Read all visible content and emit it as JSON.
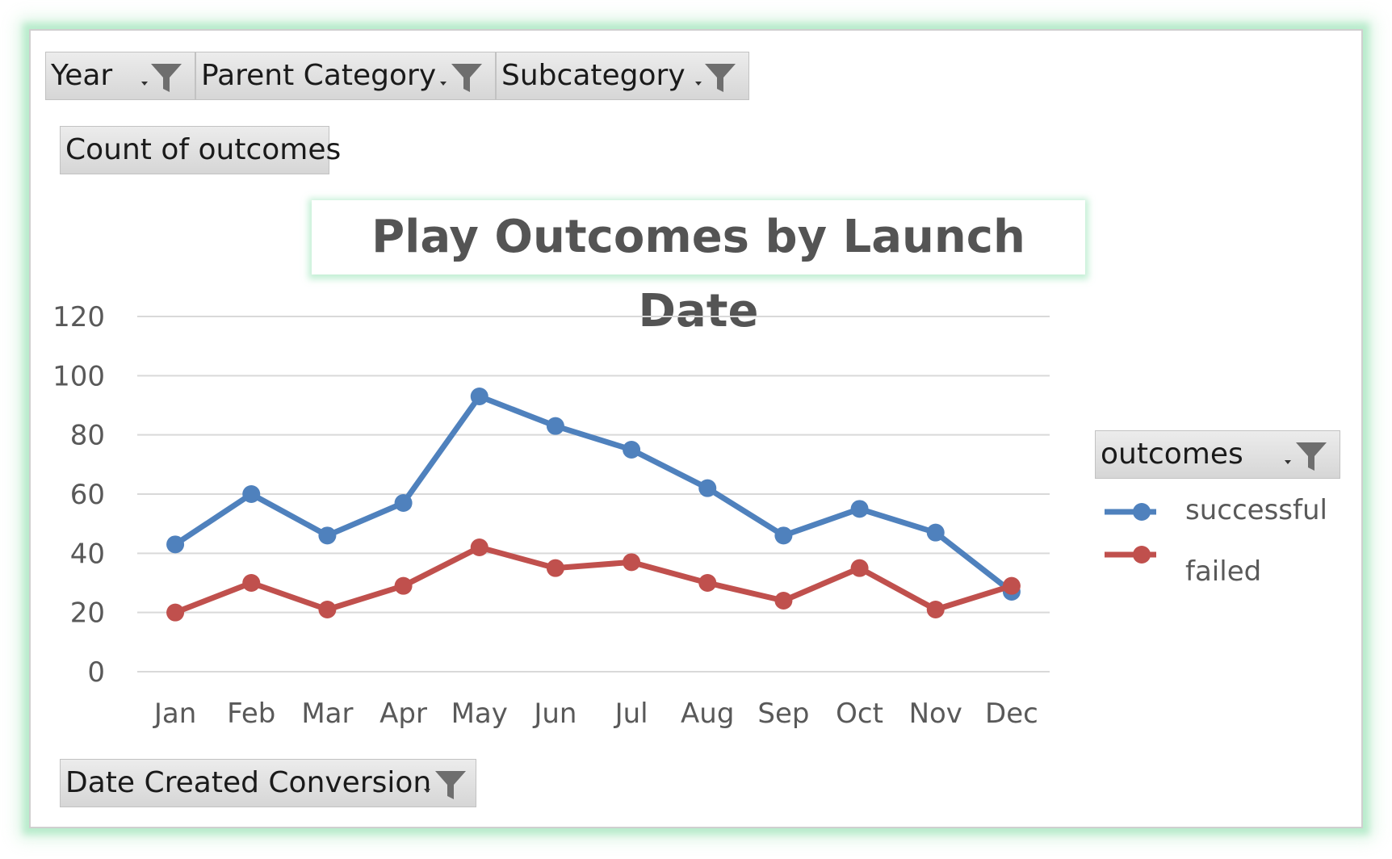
{
  "filters": {
    "year": "Year",
    "parent_category": "Parent Category",
    "subcategory": "Subcategory"
  },
  "values_field": "Count of outcomes",
  "axis_field": "Date Created Conversion",
  "legend_field": "outcomes",
  "icons": [
    "funnel-filter-icon",
    "dropdown-arrow-icon"
  ],
  "colors": {
    "successful": "#4F81BD",
    "failed": "#C0504D",
    "grid": "#d9d9d9",
    "glow": "#96e1b4"
  },
  "chart_data": {
    "type": "line",
    "title": "Play Outcomes by Launch Date",
    "categories": [
      "Jan",
      "Feb",
      "Mar",
      "Apr",
      "May",
      "Jun",
      "Jul",
      "Aug",
      "Sep",
      "Oct",
      "Nov",
      "Dec"
    ],
    "series": [
      {
        "name": "successful",
        "values": [
          43,
          60,
          46,
          57,
          93,
          83,
          75,
          62,
          46,
          55,
          47,
          27
        ]
      },
      {
        "name": "failed",
        "values": [
          20,
          30,
          21,
          29,
          42,
          35,
          37,
          30,
          24,
          35,
          21,
          29
        ]
      }
    ],
    "ylim": [
      0,
      120
    ],
    "yticks": [
      0,
      20,
      40,
      60,
      80,
      100,
      120
    ],
    "grid": true,
    "legend_position": "right"
  }
}
